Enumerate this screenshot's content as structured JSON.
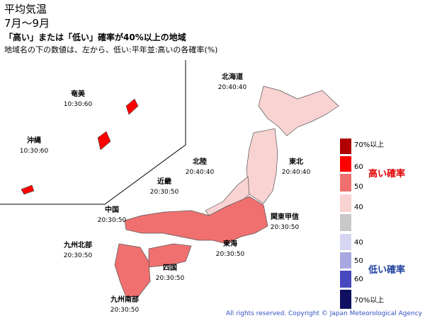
{
  "header": {
    "title": "平均気温",
    "period": "7月～9月",
    "subtitle": "「高い」または「低い」確率が40%以上の地域",
    "note": "地域名の下の数値は、左から、低い:平年並:高いの各確率(%)"
  },
  "regions": [
    {
      "name": "北海道",
      "probabilities": "20:40:40"
    },
    {
      "name": "東北",
      "probabilities": "20:40:40"
    },
    {
      "name": "北陸",
      "probabilities": "20:40:40"
    },
    {
      "name": "関東甲信",
      "probabilities": "20:30:50"
    },
    {
      "name": "東海",
      "probabilities": "20:30:50"
    },
    {
      "name": "近畿",
      "probabilities": "20:30:50"
    },
    {
      "name": "中国",
      "probabilities": "20:30:50"
    },
    {
      "name": "四国",
      "probabilities": "20:30:50"
    },
    {
      "name": "九州北部",
      "probabilities": "20:30:50"
    },
    {
      "name": "九州南部",
      "probabilities": "20:30:50"
    },
    {
      "name": "奄美",
      "probabilities": "10:30:60"
    },
    {
      "name": "沖縄",
      "probabilities": "10:30:60"
    }
  ],
  "legend": {
    "high_label": "高い確率",
    "low_label": "低い確率",
    "items": [
      {
        "label": "70%以上",
        "color": "#b00000"
      },
      {
        "label": "60",
        "color": "#ff0000"
      },
      {
        "label": "50",
        "color": "#f07070"
      },
      {
        "label": "40",
        "color": "#f9d2d2"
      },
      {
        "label": null,
        "color": "#c8c8c8"
      },
      {
        "label": "40",
        "color": "#d6d6f2"
      },
      {
        "label": "50",
        "color": "#a8a8e0"
      },
      {
        "label": "60",
        "color": "#4848c0"
      },
      {
        "label": "70%以上",
        "color": "#101060"
      }
    ]
  },
  "footer": {
    "copyright": "All rights reserved. Copyright © Japan Meteorological Agency"
  }
}
